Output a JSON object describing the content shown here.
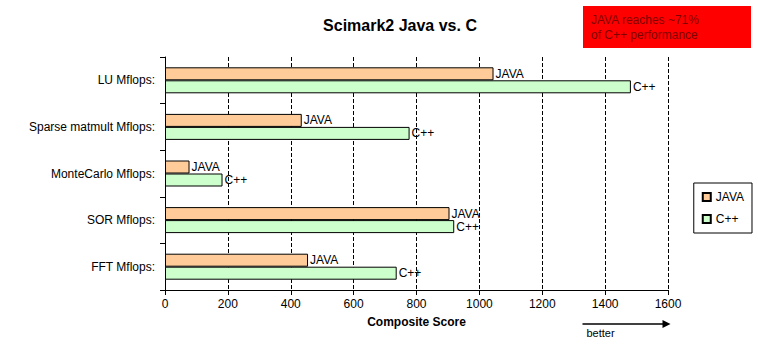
{
  "chart_data": {
    "type": "bar",
    "title": "Scimark2 Java vs. C",
    "orientation": "horizontal",
    "categories": [
      "LU Mflops:",
      "Sparse matmult Mflops:",
      "MonteCarlo Mflops:",
      "SOR Mflops:",
      "FFT Mflops:"
    ],
    "series": [
      {
        "name": "JAVA",
        "color": "#ffcc99",
        "values": [
          1045,
          435,
          78,
          905,
          455
        ]
      },
      {
        "name": "C++",
        "color": "#ccffcc",
        "values": [
          1482,
          778,
          183,
          920,
          737
        ]
      }
    ],
    "xlabel": "Composite Score",
    "xlim": [
      0,
      1600
    ],
    "xticks": [
      0,
      200,
      400,
      600,
      800,
      1000,
      1200,
      1400,
      1600
    ],
    "grid": true,
    "legend": "right",
    "annotations": [
      "JAVA reaches ~71%\nof C++ performance",
      "better"
    ]
  }
}
